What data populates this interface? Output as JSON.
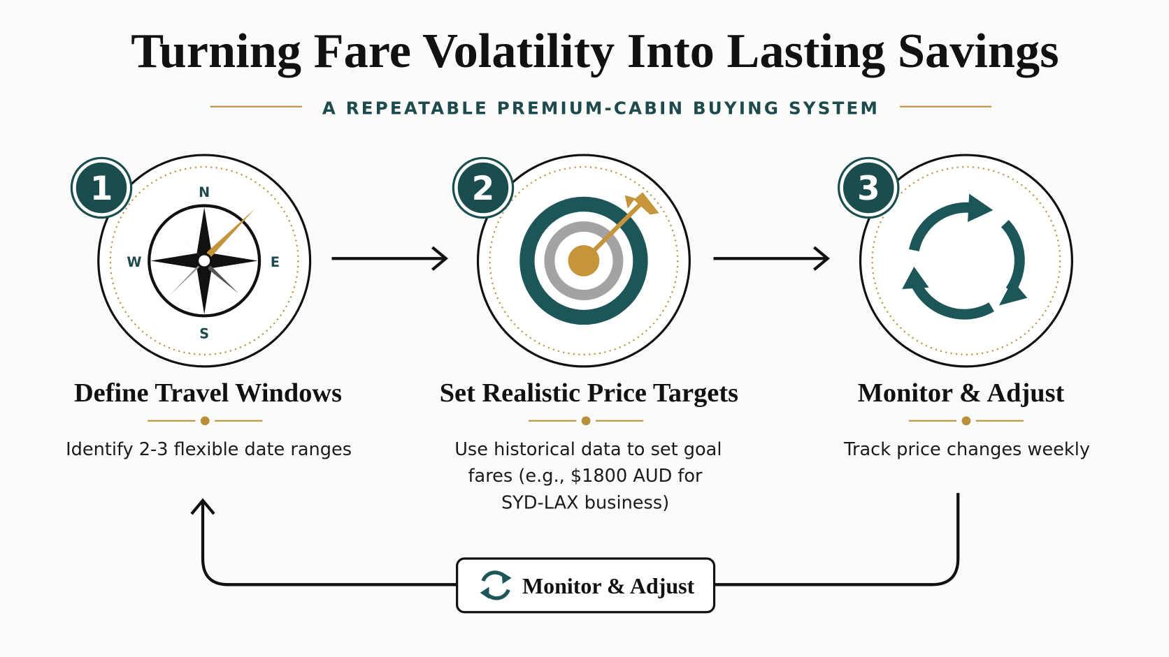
{
  "header": {
    "title": "Turning Fare Volatility Into Lasting Savings",
    "subtitle": "A REPEATABLE PREMIUM-CABIN BUYING SYSTEM"
  },
  "steps": [
    {
      "number": "1",
      "title": "Define Travel Windows",
      "description": [
        "Identify 2-3 flexible date ranges"
      ],
      "compass_labels": [
        "N",
        "E",
        "S",
        "W"
      ]
    },
    {
      "number": "2",
      "title": "Set Realistic Price Targets",
      "description": [
        "Use historical data to set goal",
        "fares (e.g., $1800 AUD for",
        "SYD-LAX business)"
      ]
    },
    {
      "number": "3",
      "title": "Monitor & Adjust",
      "description": [
        "Track price changes weekly"
      ]
    }
  ],
  "loop": {
    "label": "Monitor & Adjust"
  }
}
